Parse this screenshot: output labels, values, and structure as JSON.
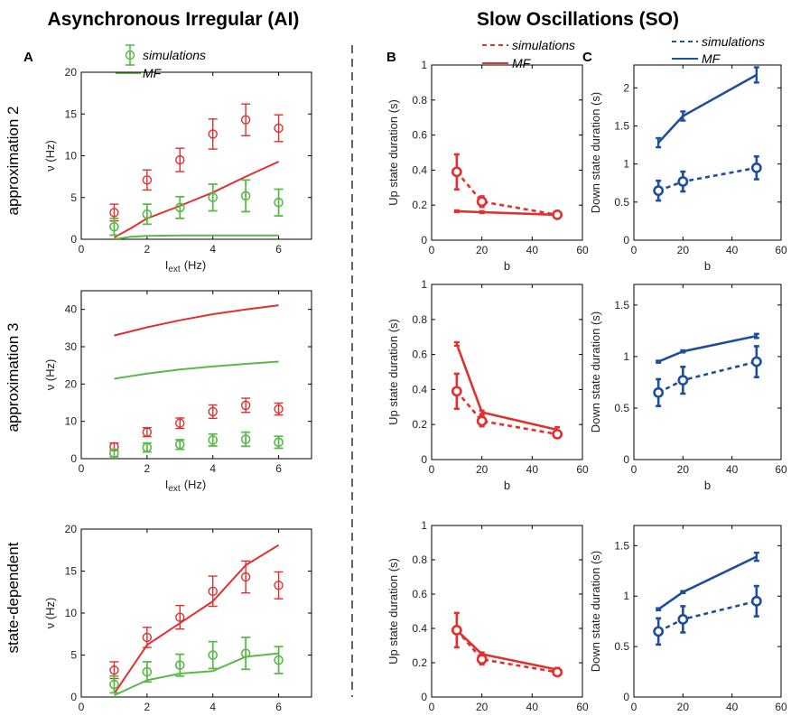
{
  "titles": {
    "left": "Asynchronous Irregular (AI)",
    "right": "Slow Oscillations (SO)"
  },
  "panel_letters": {
    "a": "A",
    "b": "B",
    "c": "C"
  },
  "row_labels": [
    "approximation 2",
    "approximation 3",
    "state-dependent"
  ],
  "legend": {
    "simulations": "simulations",
    "mf": "MF"
  },
  "axis_labels": {
    "ai_x_main": "I",
    "ai_x_sub": "ext",
    "ai_x_unit": "(Hz)",
    "ai_y": "ν (Hz)",
    "so_x": "b",
    "up_y": "Up  state duration (s)",
    "down_y": "Down state duration (s)"
  },
  "colors": {
    "red": "#e03030",
    "green": "#5cb848",
    "blue": "#1f4e9c"
  },
  "chart_data": [
    {
      "id": "ai-approx2",
      "type": "line",
      "xlim": [
        0,
        7
      ],
      "ylim": [
        0,
        20
      ],
      "xticks": [
        0,
        2,
        4,
        6
      ],
      "yticks": [
        0,
        5,
        10,
        15,
        20
      ],
      "sim_x": [
        1,
        2,
        3,
        4,
        5,
        6
      ],
      "sim_red": [
        3.2,
        7.1,
        9.5,
        12.6,
        14.3,
        13.3
      ],
      "sim_red_err": [
        1.0,
        1.2,
        1.4,
        1.8,
        1.9,
        1.6
      ],
      "sim_green": [
        1.5,
        3.0,
        3.8,
        5.0,
        5.2,
        4.4
      ],
      "sim_green_err": [
        1.0,
        1.2,
        1.3,
        1.6,
        1.9,
        1.6
      ],
      "mf_red_x": [
        1,
        1.5,
        2,
        3,
        4,
        5,
        6
      ],
      "mf_red_y": [
        0.2,
        1.3,
        2.5,
        4.0,
        5.6,
        7.5,
        9.3
      ],
      "mf_green_x": [
        1,
        1.5,
        2,
        3,
        4,
        5,
        6
      ],
      "mf_green_y": [
        0,
        0.3,
        0.4,
        0.45,
        0.45,
        0.45,
        0.45
      ]
    },
    {
      "id": "ai-approx3",
      "type": "line",
      "xlim": [
        0,
        7
      ],
      "ylim": [
        0,
        45
      ],
      "xticks": [
        0,
        2,
        4,
        6
      ],
      "yticks": [
        0,
        10,
        20,
        30,
        40
      ],
      "sim_x": [
        1,
        2,
        3,
        4,
        5,
        6
      ],
      "sim_red": [
        3.2,
        7.1,
        9.5,
        12.6,
        14.3,
        13.3
      ],
      "sim_red_err": [
        1.0,
        1.2,
        1.4,
        1.8,
        1.9,
        1.6
      ],
      "sim_green": [
        1.5,
        3.0,
        3.8,
        5.0,
        5.2,
        4.4
      ],
      "sim_green_err": [
        1.0,
        1.2,
        1.3,
        1.6,
        1.9,
        1.6
      ],
      "mf_red_x": [
        1,
        2,
        3,
        4,
        5,
        6
      ],
      "mf_red_y": [
        33.0,
        35.2,
        37.1,
        38.7,
        40.0,
        41.1
      ],
      "mf_green_x": [
        1,
        2,
        3,
        4,
        5,
        6
      ],
      "mf_green_y": [
        21.4,
        22.8,
        23.9,
        24.7,
        25.4,
        26.0
      ]
    },
    {
      "id": "ai-state",
      "type": "line",
      "xlim": [
        0,
        7
      ],
      "ylim": [
        0,
        20
      ],
      "xticks": [
        0,
        2,
        4,
        6
      ],
      "yticks": [
        0,
        5,
        10,
        15,
        20
      ],
      "sim_x": [
        1,
        2,
        3,
        4,
        5,
        6
      ],
      "sim_red": [
        3.2,
        7.1,
        9.5,
        12.6,
        14.3,
        13.3
      ],
      "sim_red_err": [
        1.0,
        1.2,
        1.4,
        1.8,
        1.9,
        1.6
      ],
      "sim_green": [
        1.5,
        3.0,
        3.8,
        5.0,
        5.2,
        4.4
      ],
      "sim_green_err": [
        1.0,
        1.2,
        1.3,
        1.6,
        1.9,
        1.6
      ],
      "mf_red_x": [
        1,
        2,
        3,
        4,
        5,
        6
      ],
      "mf_red_y": [
        0.4,
        6.2,
        8.8,
        11.4,
        15.7,
        18.1
      ],
      "mf_green_x": [
        1,
        2,
        3,
        4,
        5,
        6
      ],
      "mf_green_y": [
        0.2,
        2.0,
        2.8,
        3.1,
        4.8,
        5.2
      ]
    },
    {
      "id": "up-1",
      "type": "line",
      "xlim": [
        0,
        60
      ],
      "ylim": [
        0,
        1
      ],
      "xticks": [
        0,
        20,
        40,
        60
      ],
      "yticks": [
        0,
        0.2,
        0.4,
        0.6,
        0.8,
        1
      ],
      "x": [
        10,
        20,
        50
      ],
      "sim": [
        0.39,
        0.22,
        0.145
      ],
      "sim_err": [
        0.1,
        0.03,
        0.015
      ],
      "mf": [
        0.165,
        0.16,
        0.145
      ],
      "mf_err": [
        0.005,
        0.005,
        0.005
      ]
    },
    {
      "id": "down-1",
      "type": "line",
      "xlim": [
        0,
        60
      ],
      "ylim": [
        0,
        2.3
      ],
      "xticks": [
        0,
        20,
        40,
        60
      ],
      "yticks": [
        0,
        0.5,
        1,
        1.5,
        2
      ],
      "x": [
        10,
        20,
        50
      ],
      "sim": [
        0.65,
        0.77,
        0.95
      ],
      "sim_err": [
        0.13,
        0.13,
        0.15
      ],
      "mf": [
        1.28,
        1.63,
        2.17
      ],
      "mf_err": [
        0.06,
        0.06,
        0.1
      ]
    },
    {
      "id": "up-2",
      "type": "line",
      "xlim": [
        0,
        60
      ],
      "ylim": [
        0,
        1
      ],
      "xticks": [
        0,
        20,
        40,
        60
      ],
      "yticks": [
        0,
        0.2,
        0.4,
        0.6,
        0.8,
        1
      ],
      "x": [
        10,
        20,
        50
      ],
      "sim": [
        0.39,
        0.22,
        0.145
      ],
      "sim_err": [
        0.1,
        0.03,
        0.015
      ],
      "mf": [
        0.66,
        0.27,
        0.17
      ],
      "mf_err": [
        0.01,
        0.01,
        0.015
      ]
    },
    {
      "id": "down-2",
      "type": "line",
      "xlim": [
        0,
        60
      ],
      "ylim": [
        0,
        1.7
      ],
      "xticks": [
        0,
        20,
        40,
        60
      ],
      "yticks": [
        0,
        0.5,
        1,
        1.5
      ],
      "x": [
        10,
        20,
        50
      ],
      "sim": [
        0.65,
        0.77,
        0.95
      ],
      "sim_err": [
        0.13,
        0.13,
        0.15
      ],
      "mf": [
        0.95,
        1.05,
        1.2
      ],
      "mf_err": [
        0.01,
        0.01,
        0.02
      ]
    },
    {
      "id": "up-3",
      "type": "line",
      "xlim": [
        0,
        60
      ],
      "ylim": [
        0,
        1
      ],
      "xticks": [
        0,
        20,
        40,
        60
      ],
      "yticks": [
        0,
        0.2,
        0.4,
        0.6,
        0.8,
        1
      ],
      "x": [
        10,
        20,
        50
      ],
      "sim": [
        0.39,
        0.22,
        0.145
      ],
      "sim_err": [
        0.1,
        0.03,
        0.015
      ],
      "mf": [
        0.39,
        0.25,
        0.16
      ],
      "mf_err": [
        0.01,
        0.01,
        0.01
      ]
    },
    {
      "id": "down-3",
      "type": "line",
      "xlim": [
        0,
        60
      ],
      "ylim": [
        0,
        1.7
      ],
      "xticks": [
        0,
        20,
        40,
        60
      ],
      "yticks": [
        0,
        0.5,
        1,
        1.5
      ],
      "x": [
        10,
        20,
        50
      ],
      "sim": [
        0.65,
        0.77,
        0.95
      ],
      "sim_err": [
        0.13,
        0.13,
        0.15
      ],
      "mf": [
        0.87,
        1.04,
        1.39
      ],
      "mf_err": [
        0.01,
        0.01,
        0.04
      ]
    }
  ]
}
